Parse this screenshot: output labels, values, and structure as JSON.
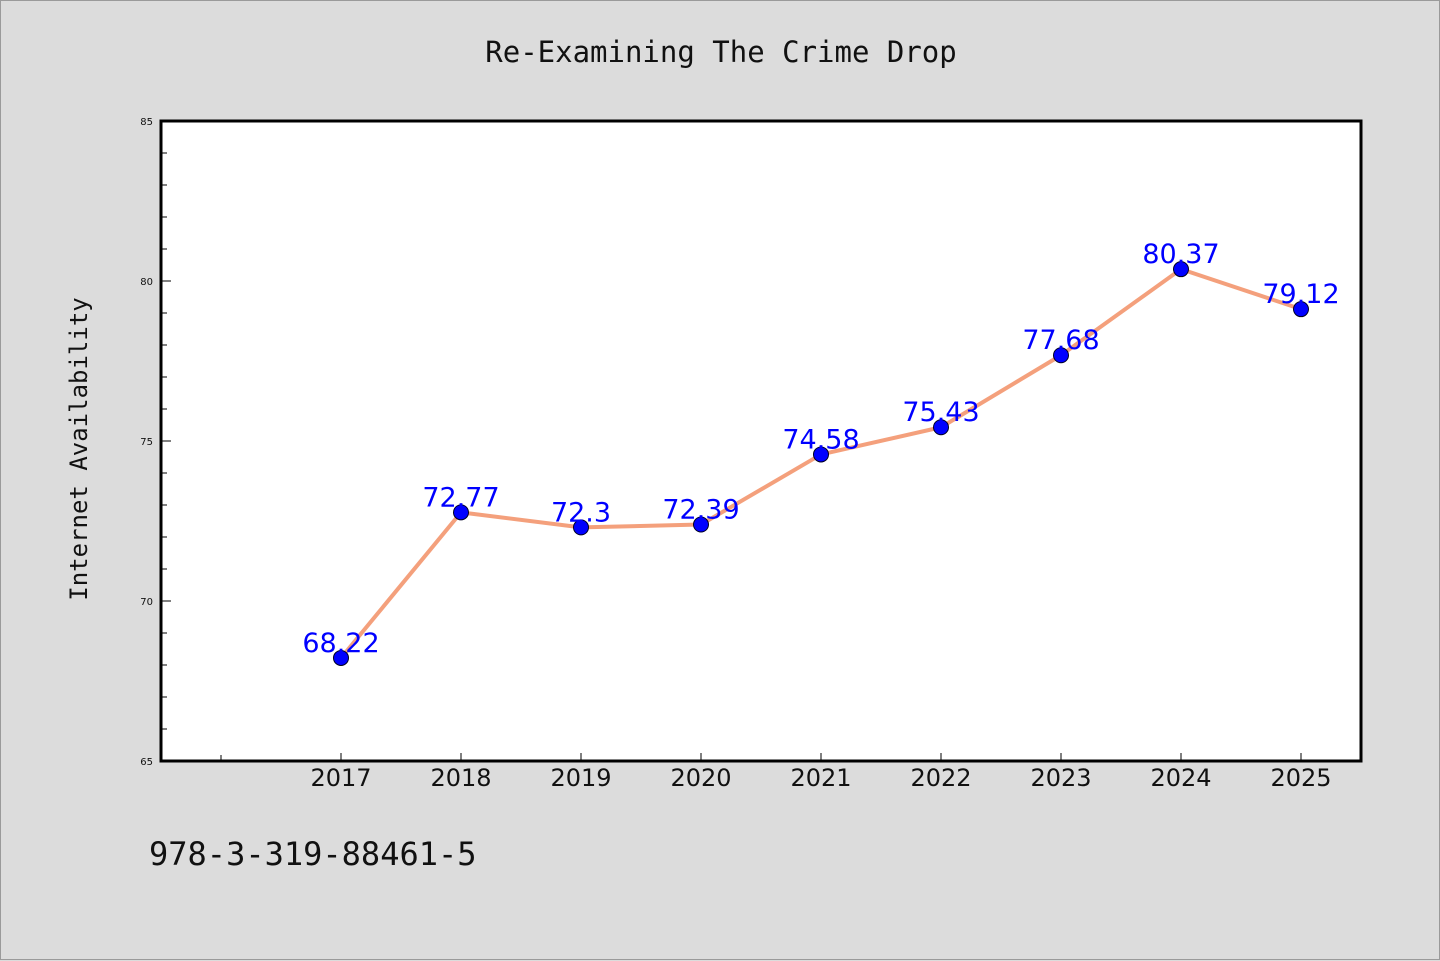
{
  "chart_data": {
    "type": "line",
    "title": "Re-Examining The Crime Drop",
    "ylabel": "Internet Availability",
    "xlabel": "",
    "categories": [
      "2017",
      "2018",
      "2019",
      "2020",
      "2021",
      "2022",
      "2023",
      "2024",
      "2025"
    ],
    "values": [
      68.22,
      72.77,
      72.3,
      72.39,
      74.58,
      75.43,
      77.68,
      80.37,
      79.12
    ],
    "data_labels": [
      "68.22",
      "72.77",
      "72.3",
      "72.39",
      "74.58",
      "75.43",
      "77.68",
      "80.37",
      "79.12"
    ],
    "ylim": [
      65,
      85
    ],
    "yticks": [
      "65",
      "70",
      "75",
      "80",
      "85"
    ],
    "grid": false,
    "line_color": "#f4a07c",
    "marker_color": "#0000ff",
    "label_color": "#0000ff"
  },
  "footer_text": "978-3-319-88461-5"
}
